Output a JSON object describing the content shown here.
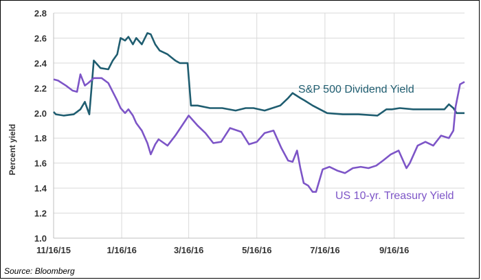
{
  "source": "Source: Bloomberg",
  "chart_data": {
    "type": "line",
    "ylabel": "Percent yield",
    "xlabel": "",
    "ylim": [
      1.0,
      2.8
    ],
    "yticks": [
      1.0,
      1.2,
      1.4,
      1.6,
      1.8,
      2.0,
      2.2,
      2.4,
      2.6,
      2.8
    ],
    "ytick_labels": [
      "1.0",
      "1.2",
      "1.4",
      "1.6",
      "1.8",
      "2.0",
      "2.2",
      "2.4",
      "2.6",
      "2.8"
    ],
    "xticks": [
      "2015-11-16",
      "2016-01-16",
      "2016-03-16",
      "2016-05-16",
      "2016-07-16",
      "2016-09-16"
    ],
    "xtick_labels": [
      "11/16/15",
      "1/16/16",
      "3/16/16",
      "5/16/16",
      "7/16/16",
      "9/16/16"
    ],
    "xlim": [
      "2015-11-16",
      "2016-11-18"
    ],
    "grid": true,
    "series": [
      {
        "name": "S&P 500 Dividend Yield",
        "color": "#1f5d70",
        "x": [
          "2015-11-16",
          "2015-11-18",
          "2015-11-25",
          "2015-12-04",
          "2015-12-10",
          "2015-12-14",
          "2015-12-18",
          "2015-12-22",
          "2015-12-28",
          "2016-01-04",
          "2016-01-08",
          "2016-01-12",
          "2016-01-15",
          "2016-01-19",
          "2016-01-22",
          "2016-01-26",
          "2016-01-29",
          "2016-02-03",
          "2016-02-08",
          "2016-02-11",
          "2016-02-15",
          "2016-02-19",
          "2016-02-26",
          "2016-03-04",
          "2016-03-08",
          "2016-03-11",
          "2016-03-15",
          "2016-03-18",
          "2016-03-24",
          "2016-04-04",
          "2016-04-15",
          "2016-04-27",
          "2016-05-06",
          "2016-05-13",
          "2016-05-23",
          "2016-06-06",
          "2016-06-13",
          "2016-06-17",
          "2016-06-24",
          "2016-06-28",
          "2016-07-05",
          "2016-07-18",
          "2016-08-01",
          "2016-08-15",
          "2016-09-01",
          "2016-09-09",
          "2016-09-14",
          "2016-09-21",
          "2016-10-03",
          "2016-10-17",
          "2016-10-31",
          "2016-11-04",
          "2016-11-08",
          "2016-11-11",
          "2016-11-18"
        ],
        "y": [
          2.01,
          1.99,
          1.98,
          1.99,
          2.03,
          2.09,
          1.99,
          2.42,
          2.36,
          2.35,
          2.42,
          2.47,
          2.6,
          2.58,
          2.61,
          2.55,
          2.6,
          2.55,
          2.64,
          2.63,
          2.55,
          2.5,
          2.47,
          2.42,
          2.4,
          2.4,
          2.4,
          2.06,
          2.06,
          2.04,
          2.04,
          2.02,
          2.04,
          2.04,
          2.02,
          2.06,
          2.12,
          2.16,
          2.12,
          2.1,
          2.06,
          2.0,
          1.99,
          1.99,
          1.98,
          2.03,
          2.03,
          2.04,
          2.03,
          2.03,
          2.03,
          2.07,
          2.04,
          2.0,
          2.0
        ]
      },
      {
        "name": "US 10-yr. Treasury Yield",
        "color": "#7d55c7",
        "x": [
          "2015-11-16",
          "2015-11-20",
          "2015-11-27",
          "2015-12-03",
          "2015-12-07",
          "2015-12-10",
          "2015-12-14",
          "2015-12-17",
          "2015-12-22",
          "2015-12-29",
          "2016-01-04",
          "2016-01-08",
          "2016-01-12",
          "2016-01-15",
          "2016-01-19",
          "2016-01-22",
          "2016-01-26",
          "2016-01-29",
          "2016-02-03",
          "2016-02-08",
          "2016-02-11",
          "2016-02-15",
          "2016-02-18",
          "2016-02-26",
          "2016-03-04",
          "2016-03-10",
          "2016-03-16",
          "2016-03-24",
          "2016-03-31",
          "2016-04-07",
          "2016-04-14",
          "2016-04-22",
          "2016-05-02",
          "2016-05-09",
          "2016-05-16",
          "2016-05-23",
          "2016-05-31",
          "2016-06-07",
          "2016-06-13",
          "2016-06-17",
          "2016-06-21",
          "2016-06-24",
          "2016-06-27",
          "2016-07-01",
          "2016-07-05",
          "2016-07-08",
          "2016-07-14",
          "2016-07-20",
          "2016-07-27",
          "2016-08-03",
          "2016-08-10",
          "2016-08-17",
          "2016-08-24",
          "2016-08-31",
          "2016-09-06",
          "2016-09-13",
          "2016-09-20",
          "2016-09-27",
          "2016-09-30",
          "2016-10-07",
          "2016-10-14",
          "2016-10-21",
          "2016-10-28",
          "2016-11-04",
          "2016-11-08",
          "2016-11-10",
          "2016-11-14",
          "2016-11-18"
        ],
        "y": [
          2.27,
          2.26,
          2.22,
          2.18,
          2.17,
          2.31,
          2.22,
          2.24,
          2.28,
          2.28,
          2.24,
          2.17,
          2.1,
          2.04,
          2.0,
          2.03,
          1.98,
          1.92,
          1.86,
          1.76,
          1.67,
          1.75,
          1.79,
          1.74,
          1.82,
          1.9,
          1.98,
          1.9,
          1.84,
          1.76,
          1.77,
          1.88,
          1.85,
          1.75,
          1.77,
          1.84,
          1.86,
          1.72,
          1.62,
          1.61,
          1.7,
          1.56,
          1.44,
          1.42,
          1.37,
          1.37,
          1.55,
          1.57,
          1.54,
          1.52,
          1.56,
          1.57,
          1.56,
          1.58,
          1.62,
          1.67,
          1.7,
          1.56,
          1.6,
          1.74,
          1.77,
          1.74,
          1.82,
          1.8,
          1.86,
          2.05,
          2.23,
          2.25
        ]
      }
    ],
    "annotations": [
      {
        "text": "S&P 500 Dividend Yield",
        "series": 0
      },
      {
        "text": "US 10-yr. Treasury Yield",
        "series": 1
      }
    ]
  }
}
